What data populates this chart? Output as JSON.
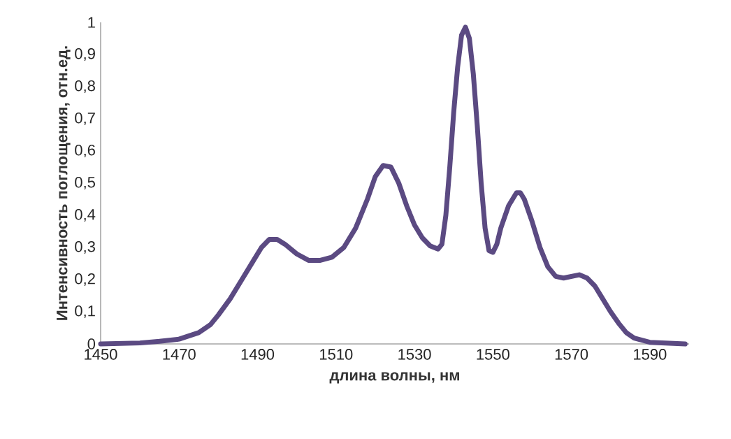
{
  "chart_data": {
    "type": "line",
    "xlabel": "длина волны, нм",
    "ylabel": "Интенсивность  поглощения, отн.ед.",
    "color": "#5b4a82",
    "x": [
      1450,
      1460,
      1465,
      1470,
      1475,
      1478,
      1480,
      1483,
      1486,
      1489,
      1491,
      1493,
      1495,
      1497,
      1500,
      1503,
      1506,
      1509,
      1512,
      1515,
      1518,
      1520,
      1522,
      1524,
      1526,
      1528,
      1530,
      1532,
      1534,
      1536,
      1537,
      1538,
      1539,
      1540,
      1541,
      1542,
      1543,
      1544,
      1545,
      1546,
      1547,
      1548,
      1549,
      1550,
      1551,
      1552,
      1554,
      1556,
      1557,
      1558,
      1560,
      1562,
      1564,
      1566,
      1568,
      1570,
      1572,
      1574,
      1576,
      1578,
      1580,
      1582,
      1584,
      1586,
      1590,
      1595,
      1599
    ],
    "values": [
      0,
      0.003,
      0.008,
      0.015,
      0.035,
      0.06,
      0.09,
      0.14,
      0.2,
      0.26,
      0.3,
      0.325,
      0.325,
      0.31,
      0.28,
      0.26,
      0.26,
      0.27,
      0.3,
      0.36,
      0.45,
      0.52,
      0.555,
      0.55,
      0.5,
      0.43,
      0.37,
      0.33,
      0.305,
      0.295,
      0.31,
      0.4,
      0.55,
      0.72,
      0.86,
      0.96,
      0.985,
      0.95,
      0.84,
      0.68,
      0.5,
      0.36,
      0.29,
      0.285,
      0.31,
      0.36,
      0.43,
      0.47,
      0.47,
      0.45,
      0.38,
      0.3,
      0.24,
      0.21,
      0.205,
      0.21,
      0.215,
      0.205,
      0.18,
      0.14,
      0.1,
      0.065,
      0.035,
      0.018,
      0.005,
      0.002,
      0
    ],
    "xlim": [
      1450,
      1600
    ],
    "ylim": [
      0,
      1
    ],
    "xticks": [
      1450,
      1470,
      1490,
      1510,
      1530,
      1550,
      1570,
      1590
    ],
    "yticks": [
      0,
      {
        "value": 0.1,
        "label": "0,1"
      },
      {
        "value": 0.2,
        "label": "0,2"
      },
      {
        "value": 0.3,
        "label": "0,3"
      },
      {
        "value": 0.4,
        "label": "0,4"
      },
      {
        "value": 0.5,
        "label": "0,5"
      },
      {
        "value": 0.6,
        "label": "0,6"
      },
      {
        "value": 0.7,
        "label": "0,7"
      },
      {
        "value": 0.8,
        "label": "0,8"
      },
      {
        "value": 0.9,
        "label": "0,9"
      },
      1
    ]
  }
}
